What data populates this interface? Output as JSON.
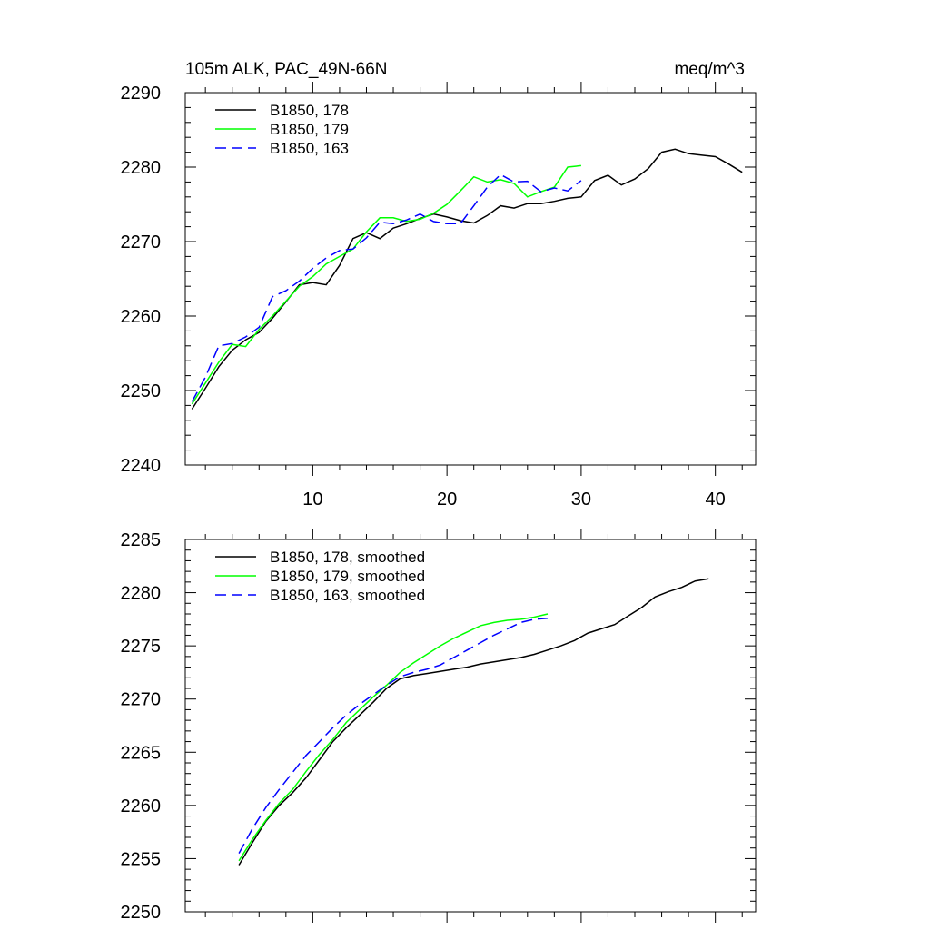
{
  "chart_data": [
    {
      "type": "line",
      "title_left": "105m ALK, PAC_49N-66N",
      "title_right": "meq/m^3",
      "xlim": [
        0.5,
        43
      ],
      "ylim": [
        2240,
        2290
      ],
      "xticks": [
        10,
        20,
        30,
        40
      ],
      "xtick_labels": [
        "10",
        "20",
        "30",
        "40"
      ],
      "yticks": [
        2240,
        2250,
        2260,
        2270,
        2280,
        2290
      ],
      "ytick_labels": [
        "2240",
        "2250",
        "2260",
        "2270",
        "2280",
        "2290"
      ],
      "legend_position": "top-left",
      "series": [
        {
          "name": "B1850, 178",
          "color": "#000000",
          "dash": "solid",
          "x": [
            1,
            2,
            3,
            4,
            5,
            6,
            7,
            8,
            9,
            10,
            11,
            12,
            13,
            14,
            15,
            16,
            17,
            18,
            19,
            20,
            21,
            22,
            23,
            24,
            25,
            26,
            27,
            28,
            29,
            30,
            31,
            32,
            33,
            34,
            35,
            36,
            37,
            38,
            39,
            40,
            41,
            42
          ],
          "values": [
            2247.5,
            2250.3,
            2253.2,
            2255.4,
            2256.8,
            2257.8,
            2259.7,
            2261.9,
            2264.2,
            2264.5,
            2264.2,
            2266.8,
            2270.4,
            2271.2,
            2270.4,
            2271.8,
            2272.4,
            2273.1,
            2273.7,
            2273.3,
            2272.8,
            2272.5,
            2273.5,
            2274.8,
            2274.5,
            2275.1,
            2275.1,
            2275.4,
            2275.8,
            2276.0,
            2278.2,
            2278.9,
            2277.6,
            2278.4,
            2279.8,
            2282.0,
            2282.4,
            2281.8,
            2281.6,
            2281.4,
            2280.4,
            2279.3
          ]
        },
        {
          "name": "B1850, 179",
          "color": "#00ff00",
          "dash": "solid",
          "x": [
            1,
            2,
            3,
            4,
            5,
            6,
            7,
            8,
            9,
            10,
            11,
            12,
            13,
            14,
            15,
            16,
            17,
            18,
            19,
            20,
            21,
            22,
            23,
            24,
            25,
            26,
            27,
            28,
            29,
            30
          ],
          "values": [
            2248.2,
            2251.0,
            2253.8,
            2256.2,
            2255.9,
            2258.2,
            2260.0,
            2262.0,
            2264.0,
            2265.3,
            2267.0,
            2268.0,
            2269.0,
            2271.3,
            2273.2,
            2273.2,
            2272.7,
            2273.0,
            2273.8,
            2275.0,
            2276.8,
            2278.7,
            2278.0,
            2278.3,
            2277.8,
            2276.0,
            2276.7,
            2277.3,
            2280.0,
            2280.2
          ]
        },
        {
          "name": "B1850, 163",
          "color": "#0000ff",
          "dash": "dashed",
          "x": [
            1,
            2,
            3,
            4,
            5,
            6,
            7,
            8,
            9,
            10,
            11,
            12,
            13,
            14,
            15,
            16,
            17,
            18,
            19,
            20,
            21,
            22,
            23,
            24,
            25,
            26,
            27,
            28,
            29,
            30
          ],
          "values": [
            2248.5,
            2251.8,
            2256.0,
            2256.3,
            2257.2,
            2258.5,
            2262.6,
            2263.4,
            2264.7,
            2266.4,
            2267.8,
            2268.8,
            2269.0,
            2270.5,
            2272.6,
            2272.4,
            2272.9,
            2273.7,
            2272.7,
            2272.4,
            2272.4,
            2274.8,
            2277.3,
            2279.0,
            2278.0,
            2278.1,
            2276.7,
            2277.2,
            2276.8,
            2278.2
          ]
        }
      ]
    },
    {
      "type": "line",
      "xlim": [
        0.5,
        43
      ],
      "ylim": [
        2250,
        2285
      ],
      "xticks": [
        10,
        20,
        30,
        40
      ],
      "yticks": [
        2250,
        2255,
        2260,
        2265,
        2270,
        2275,
        2280,
        2285
      ],
      "ytick_labels": [
        "2250",
        "2255",
        "2260",
        "2265",
        "2270",
        "2275",
        "2280",
        "2285"
      ],
      "legend_position": "top-left",
      "series": [
        {
          "name": "B1850, 178, smoothed",
          "color": "#000000",
          "dash": "solid",
          "x": [
            4.5,
            5.5,
            6.5,
            7.5,
            8.5,
            9.5,
            10.5,
            11.5,
            12.5,
            13.5,
            14.5,
            15.5,
            16.5,
            17.5,
            18.5,
            19.5,
            20.5,
            21.5,
            22.5,
            23.5,
            24.5,
            25.5,
            26.5,
            27.5,
            28.5,
            29.5,
            30.5,
            31.5,
            32.5,
            33.5,
            34.5,
            35.5,
            36.5,
            37.5,
            38.5,
            39.5
          ],
          "values": [
            2254.4,
            2256.5,
            2258.5,
            2260.0,
            2261.2,
            2262.6,
            2264.3,
            2266.0,
            2267.3,
            2268.5,
            2269.7,
            2271.0,
            2271.9,
            2272.2,
            2272.4,
            2272.6,
            2272.8,
            2273.0,
            2273.3,
            2273.5,
            2273.7,
            2273.9,
            2274.2,
            2274.6,
            2275.0,
            2275.5,
            2276.2,
            2276.6,
            2277.0,
            2277.8,
            2278.6,
            2279.6,
            2280.1,
            2280.5,
            2281.1,
            2281.3
          ]
        },
        {
          "name": "B1850, 179, smoothed",
          "color": "#00ff00",
          "dash": "solid",
          "x": [
            4.5,
            5.5,
            6.5,
            7.5,
            8.5,
            9.5,
            10.5,
            11.5,
            12.5,
            13.5,
            14.5,
            15.5,
            16.5,
            17.5,
            18.5,
            19.5,
            20.5,
            21.5,
            22.5,
            23.5,
            24.5,
            25.5,
            26.5,
            27.5
          ],
          "values": [
            2254.8,
            2256.8,
            2258.6,
            2260.2,
            2261.5,
            2263.2,
            2264.8,
            2266.2,
            2267.8,
            2269.0,
            2270.2,
            2271.3,
            2272.5,
            2273.4,
            2274.2,
            2275.0,
            2275.7,
            2276.3,
            2276.9,
            2277.2,
            2277.4,
            2277.5,
            2277.7,
            2278.0
          ]
        },
        {
          "name": "B1850, 163, smoothed",
          "color": "#0000ff",
          "dash": "dashed",
          "x": [
            4.5,
            5.5,
            6.5,
            7.5,
            8.5,
            9.5,
            10.5,
            11.5,
            12.5,
            13.5,
            14.5,
            15.5,
            16.5,
            17.5,
            18.5,
            19.5,
            20.5,
            21.5,
            22.5,
            23.5,
            24.5,
            25.5,
            26.5,
            27.5
          ],
          "values": [
            2255.5,
            2257.8,
            2259.8,
            2261.5,
            2263.1,
            2264.7,
            2266.0,
            2267.3,
            2268.5,
            2269.5,
            2270.4,
            2271.3,
            2272.1,
            2272.5,
            2272.8,
            2273.2,
            2273.9,
            2274.6,
            2275.3,
            2276.0,
            2276.6,
            2277.2,
            2277.5,
            2277.6
          ]
        }
      ]
    }
  ]
}
